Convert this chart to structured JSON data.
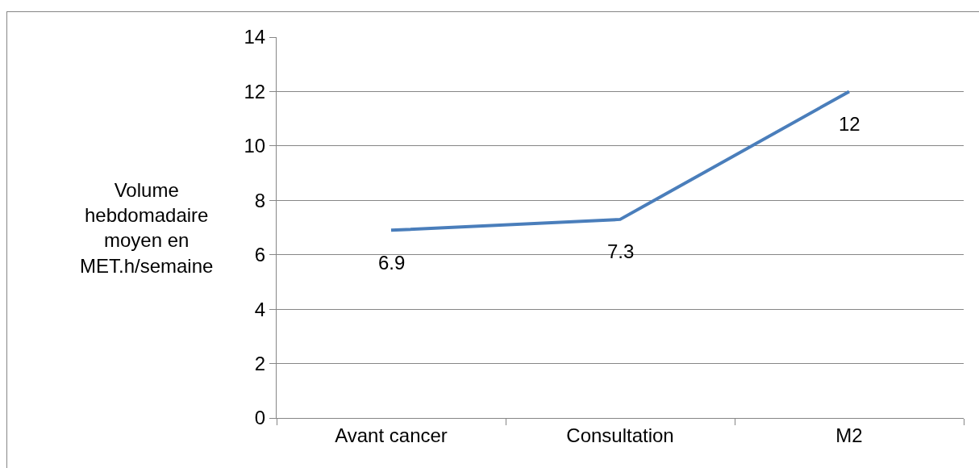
{
  "chart_data": {
    "type": "line",
    "ylabel": "Volume hebdomadaire moyen en MET.h/semaine",
    "categories": [
      "Avant cancer",
      "Consultation",
      "M2"
    ],
    "series": [
      {
        "color": "#4a7ebb",
        "values": [
          6.9,
          7.3,
          12
        ]
      }
    ],
    "ylim": [
      0,
      14
    ],
    "yticks": [
      0,
      2,
      4,
      6,
      8,
      10,
      12,
      14
    ],
    "grid": "y",
    "marker": "none",
    "line_style": "solid",
    "data_labels": true
  }
}
